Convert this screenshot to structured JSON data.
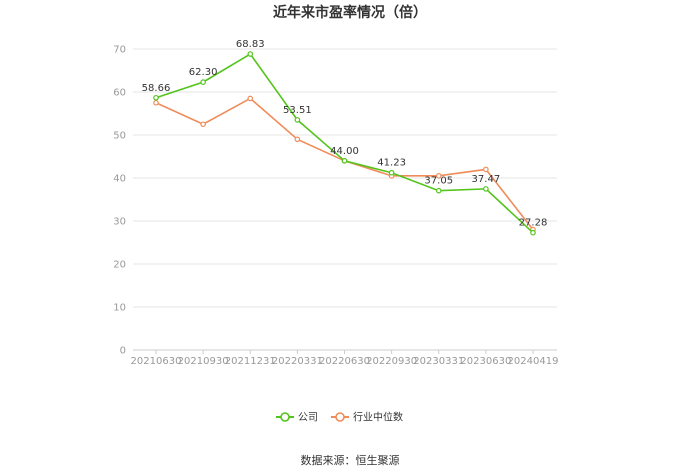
{
  "chart_data": {
    "type": "line",
    "title": "近年来市盈率情况（倍）",
    "categories": [
      "20210630",
      "20210930",
      "20211231",
      "20220331",
      "20220630",
      "20220930",
      "20230331",
      "20230630",
      "20240419"
    ],
    "series": [
      {
        "name": "公司",
        "color": "#52c41a",
        "values": [
          58.66,
          62.3,
          68.83,
          53.51,
          44.0,
          41.23,
          37.05,
          37.47,
          27.28
        ],
        "labels": [
          "58.66",
          "62.30",
          "68.83",
          "53.51",
          "44.00",
          "41.23",
          "37.05",
          "37.47",
          "27.28"
        ]
      },
      {
        "name": "行业中位数",
        "color": "#f08c5a",
        "values": [
          57.5,
          52.5,
          58.5,
          49.0,
          44.0,
          40.5,
          40.5,
          42.0,
          28.0
        ]
      }
    ],
    "ylim": [
      0,
      70
    ],
    "yticks": [
      "0",
      "10",
      "20",
      "30",
      "40",
      "50",
      "60",
      "70"
    ],
    "xlabel": "",
    "ylabel": "",
    "grid": true,
    "legend": "bottom-center"
  },
  "source_text": "数据来源：恒生聚源"
}
